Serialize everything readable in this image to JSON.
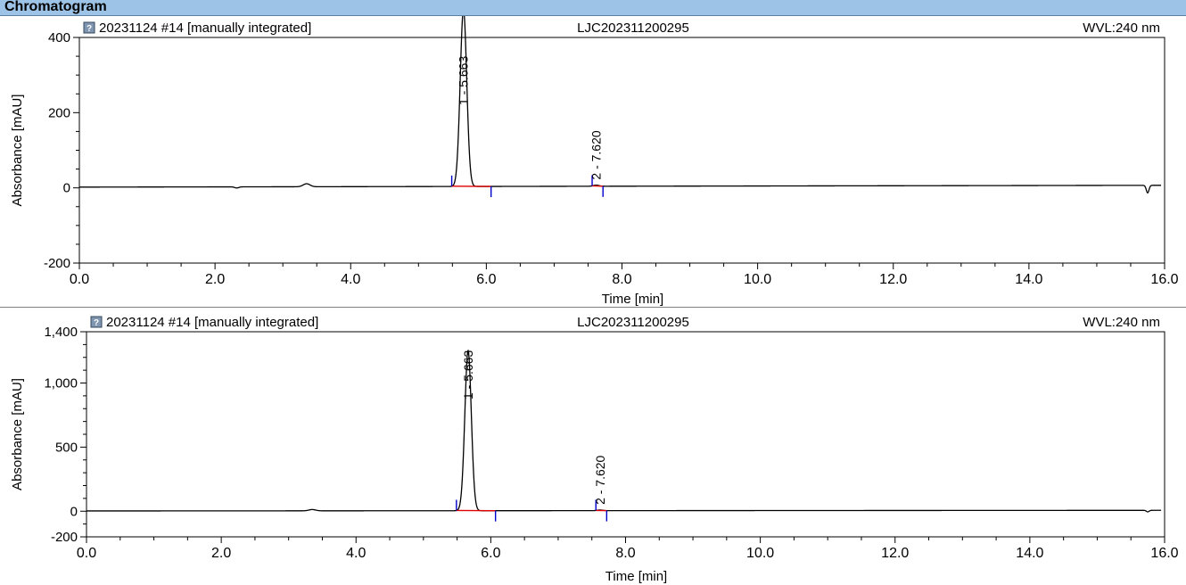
{
  "header": {
    "title": "Chromatogram"
  },
  "colors": {
    "trace": "#000000",
    "baseline": "#e00000",
    "marker": "#0000cc",
    "header_bg": "#9dc3e6"
  },
  "chart_data": [
    {
      "type": "line",
      "icon": "question-icon",
      "info_left": "20231124 #14 [manually integrated]",
      "info_center": "LJC202311200295",
      "info_right": "WVL:240 nm",
      "xlabel": "Time [min]",
      "ylabel": "Absorbance [mAU]",
      "xlim": [
        0,
        16
      ],
      "ylim": [
        -200,
        400
      ],
      "x_ticks": [
        0,
        2,
        4,
        6,
        8,
        10,
        12,
        14,
        16
      ],
      "x_tick_labels": [
        "0.0",
        "2.0",
        "4.0",
        "6.0",
        "8.0",
        "10.0",
        "12.0",
        "14.0",
        "16.0"
      ],
      "y_ticks": [
        -200,
        0,
        200,
        400
      ],
      "y_tick_labels": [
        "-200",
        "0",
        "200",
        "400"
      ],
      "grid": false,
      "peaks": [
        {
          "label": "1 - 5.663",
          "rt": 5.663,
          "height": 470,
          "sigma": 0.048,
          "start": 5.49,
          "end": 6.07
        },
        {
          "label": "2 - 7.620",
          "rt": 7.62,
          "height": 3,
          "sigma": 0.04,
          "start": 7.56,
          "end": 7.72
        }
      ],
      "minor_peaks": [
        {
          "rt": 3.35,
          "height": 8,
          "sigma": 0.05
        },
        {
          "rt": 2.32,
          "height": -3,
          "sigma": 0.03
        },
        {
          "rt": 15.75,
          "height": -20,
          "sigma": 0.02
        }
      ]
    },
    {
      "type": "line",
      "icon": "question-icon",
      "info_left": "20231124 #14 [manually integrated]",
      "info_center": "LJC202311200295",
      "info_right": "WVL:240 nm",
      "xlabel": "Time [min]",
      "ylabel": "Absorbance [mAU]",
      "xlim": [
        0,
        16
      ],
      "ylim": [
        -200,
        1400
      ],
      "x_ticks": [
        0,
        2,
        4,
        6,
        8,
        10,
        12,
        14,
        16
      ],
      "x_tick_labels": [
        "0.0",
        "2.0",
        "4.0",
        "6.0",
        "8.0",
        "10.0",
        "12.0",
        "14.0",
        "16.0"
      ],
      "y_ticks": [
        -200,
        0,
        500,
        1000,
        1400
      ],
      "y_tick_labels": [
        "-200",
        "0",
        "500",
        "1,000",
        "1,400"
      ],
      "grid": false,
      "peaks": [
        {
          "label": "1 - 5.663",
          "rt": 5.663,
          "height": 1250,
          "sigma": 0.048,
          "start": 5.49,
          "end": 6.07
        },
        {
          "label": "2 - 7.620",
          "rt": 7.62,
          "height": 5,
          "sigma": 0.04,
          "start": 7.56,
          "end": 7.72
        }
      ],
      "minor_peaks": [
        {
          "rt": 3.35,
          "height": 10,
          "sigma": 0.05
        },
        {
          "rt": 15.75,
          "height": -12,
          "sigma": 0.02
        }
      ]
    }
  ]
}
